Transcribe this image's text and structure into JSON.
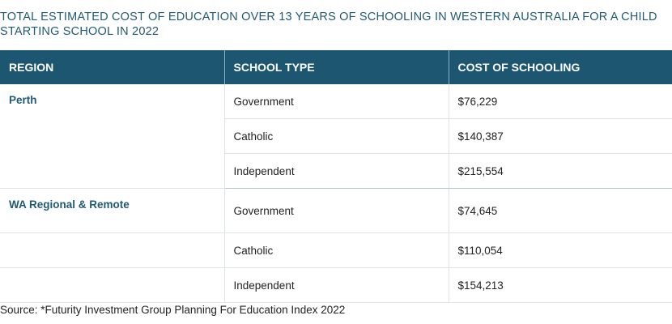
{
  "title": "TOTAL ESTIMATED COST OF EDUCATION OVER 13 YEARS OF SCHOOLING IN WESTERN AUSTRALIA FOR A CHILD STARTING SCHOOL IN 2022",
  "table": {
    "headers": [
      "REGION",
      "SCHOOL TYPE",
      "COST OF SCHOOLING"
    ],
    "rows": [
      {
        "region": "Perth",
        "school_type": "Government",
        "cost": "$76,229"
      },
      {
        "region": "",
        "school_type": "Catholic",
        "cost": "$140,387"
      },
      {
        "region": "",
        "school_type": "Independent",
        "cost": "$215,554"
      },
      {
        "region": "WA Regional & Remote",
        "school_type": "Government",
        "cost": "$74,645"
      },
      {
        "region": "",
        "school_type": "Catholic",
        "cost": "$110,054"
      },
      {
        "region": "",
        "school_type": "Independent",
        "cost": "$154,213"
      }
    ]
  },
  "source": "Source: *Futurity Investment Group Planning For Education Index 2022"
}
